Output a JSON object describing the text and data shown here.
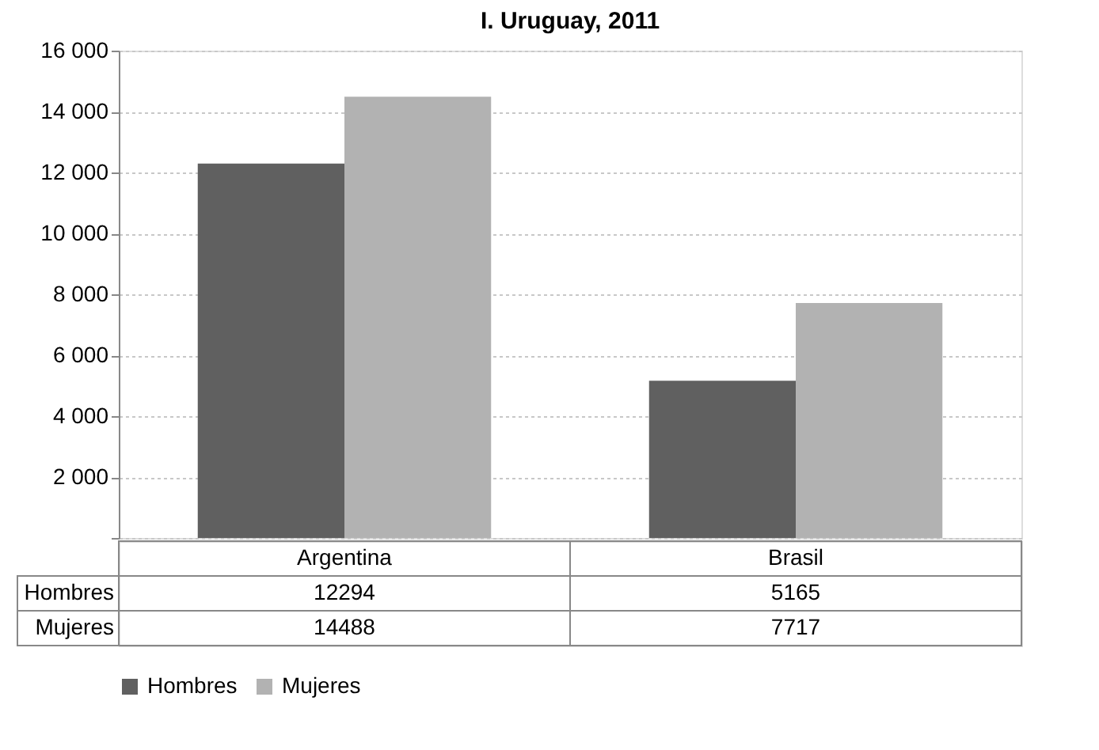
{
  "chart_data": {
    "type": "bar",
    "title": "I. Uruguay, 2011",
    "categories": [
      "Argentina",
      "Brasil"
    ],
    "series": [
      {
        "name": "Hombres",
        "color": "#606060",
        "values": [
          12294,
          5165
        ]
      },
      {
        "name": "Mujeres",
        "color": "#b2b2b2",
        "values": [
          14488,
          7717
        ]
      }
    ],
    "ylim": [
      0,
      16000
    ],
    "yticks": [
      {
        "value": 0,
        "label": null
      },
      {
        "value": 2000,
        "label": "2 000"
      },
      {
        "value": 4000,
        "label": "4 000"
      },
      {
        "value": 6000,
        "label": "6 000"
      },
      {
        "value": 8000,
        "label": "8 000"
      },
      {
        "value": 10000,
        "label": "10 000"
      },
      {
        "value": 12000,
        "label": "12 000"
      },
      {
        "value": 14000,
        "label": "14 000"
      },
      {
        "value": 16000,
        "label": "16 000"
      }
    ],
    "grid": "y",
    "legend": "bottom",
    "data_labels": true
  }
}
